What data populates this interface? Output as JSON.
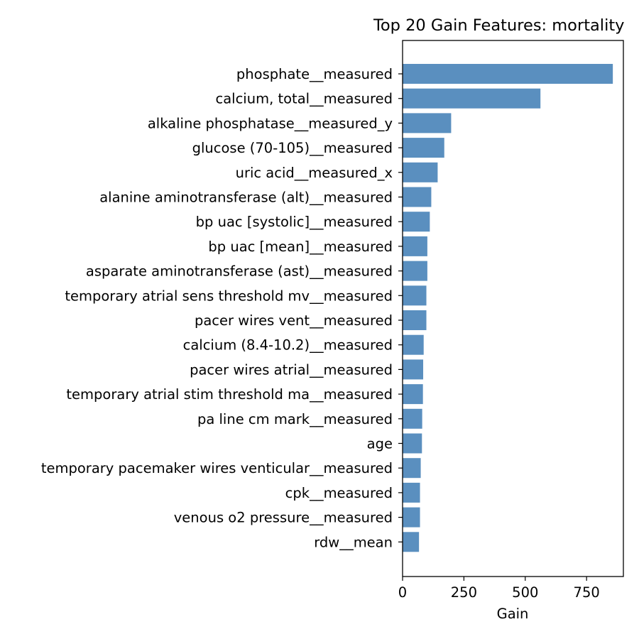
{
  "chart_data": {
    "type": "bar",
    "orientation": "horizontal",
    "title": "Top 20 Gain Features: mortality",
    "xlabel": "Gain",
    "ylabel": "",
    "xlim": [
      0,
      900
    ],
    "xticks": [
      "0",
      "250",
      "500",
      "750"
    ],
    "xtick_values": [
      0,
      250,
      500,
      750
    ],
    "grid": false,
    "bar_color": "#5a8fbf",
    "categories": [
      "phosphate__measured",
      "calcium, total__measured",
      "alkaline phosphatase__measured_y",
      "glucose (70-105)__measured",
      "uric acid__measured_x",
      "alanine aminotransferase (alt)__measured",
      "bp uac [systolic]__measured",
      "bp uac [mean]__measured",
      "asparate aminotransferase (ast)__measured",
      "temporary atrial sens threshold mv__measured",
      "pacer wires vent__measured",
      "calcium (8.4-10.2)__measured",
      "pacer wires atrial__measured",
      "temporary atrial stim threshold ma__measured",
      "pa line cm mark__measured",
      "age",
      "temporary pacemaker wires venticular__measured",
      "cpk__measured",
      "venous o2 pressure__measured",
      "rdw__mean"
    ],
    "values": [
      857,
      562,
      198,
      170,
      143,
      117,
      111,
      101,
      101,
      97,
      97,
      86,
      84,
      83,
      80,
      79,
      74,
      71,
      71,
      67
    ]
  }
}
